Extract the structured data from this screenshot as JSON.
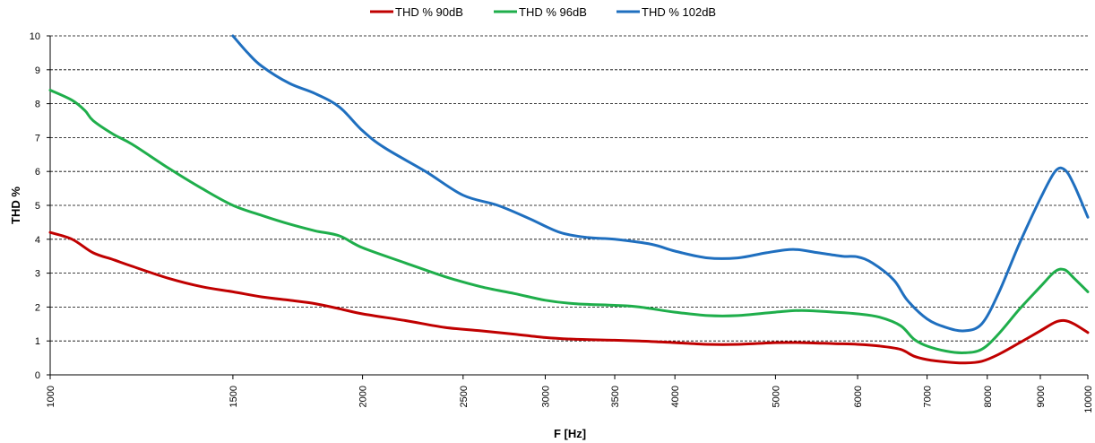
{
  "chart_data": {
    "type": "line",
    "xlabel": "F [Hz]",
    "ylabel": "THD %",
    "x_scale": "log",
    "xlim": [
      1000,
      10000
    ],
    "ylim": [
      0,
      10
    ],
    "x_ticks": [
      1000,
      1500,
      2000,
      2500,
      3000,
      3500,
      4000,
      5000,
      6000,
      7000,
      8000,
      9000,
      10000
    ],
    "y_ticks": [
      0,
      1,
      2,
      3,
      4,
      5,
      6,
      7,
      8,
      9,
      10
    ],
    "grid": "horizontal dashed",
    "legend_position": "top",
    "series": [
      {
        "name": "THD % 90dB",
        "color": "#c00000",
        "points": [
          [
            1000,
            4.2
          ],
          [
            1050,
            4.0
          ],
          [
            1100,
            3.6
          ],
          [
            1150,
            3.4
          ],
          [
            1200,
            3.2
          ],
          [
            1300,
            2.85
          ],
          [
            1400,
            2.6
          ],
          [
            1500,
            2.45
          ],
          [
            1600,
            2.3
          ],
          [
            1700,
            2.2
          ],
          [
            1800,
            2.1
          ],
          [
            1900,
            1.95
          ],
          [
            2000,
            1.8
          ],
          [
            2200,
            1.6
          ],
          [
            2400,
            1.4
          ],
          [
            2600,
            1.3
          ],
          [
            2800,
            1.2
          ],
          [
            3000,
            1.1
          ],
          [
            3200,
            1.05
          ],
          [
            3500,
            1.02
          ],
          [
            3700,
            1.0
          ],
          [
            4000,
            0.95
          ],
          [
            4300,
            0.9
          ],
          [
            4600,
            0.9
          ],
          [
            5000,
            0.95
          ],
          [
            5300,
            0.95
          ],
          [
            5700,
            0.92
          ],
          [
            6000,
            0.9
          ],
          [
            6300,
            0.85
          ],
          [
            6600,
            0.75
          ],
          [
            6800,
            0.55
          ],
          [
            7000,
            0.45
          ],
          [
            7300,
            0.38
          ],
          [
            7600,
            0.35
          ],
          [
            7900,
            0.4
          ],
          [
            8200,
            0.6
          ],
          [
            8600,
            0.95
          ],
          [
            9000,
            1.3
          ],
          [
            9300,
            1.55
          ],
          [
            9500,
            1.6
          ],
          [
            9700,
            1.5
          ],
          [
            10000,
            1.25
          ]
        ]
      },
      {
        "name": "THD % 96dB",
        "color": "#1fae4b",
        "points": [
          [
            1000,
            8.4
          ],
          [
            1050,
            8.1
          ],
          [
            1080,
            7.8
          ],
          [
            1100,
            7.5
          ],
          [
            1150,
            7.1
          ],
          [
            1200,
            6.8
          ],
          [
            1300,
            6.1
          ],
          [
            1400,
            5.5
          ],
          [
            1500,
            5.0
          ],
          [
            1600,
            4.7
          ],
          [
            1700,
            4.45
          ],
          [
            1800,
            4.25
          ],
          [
            1900,
            4.1
          ],
          [
            2000,
            3.75
          ],
          [
            2200,
            3.3
          ],
          [
            2400,
            2.9
          ],
          [
            2600,
            2.6
          ],
          [
            2800,
            2.4
          ],
          [
            3000,
            2.2
          ],
          [
            3200,
            2.1
          ],
          [
            3500,
            2.05
          ],
          [
            3700,
            2.0
          ],
          [
            4000,
            1.85
          ],
          [
            4300,
            1.75
          ],
          [
            4600,
            1.75
          ],
          [
            5000,
            1.85
          ],
          [
            5300,
            1.9
          ],
          [
            5700,
            1.85
          ],
          [
            6000,
            1.8
          ],
          [
            6300,
            1.7
          ],
          [
            6600,
            1.45
          ],
          [
            6800,
            1.05
          ],
          [
            7000,
            0.85
          ],
          [
            7300,
            0.7
          ],
          [
            7600,
            0.65
          ],
          [
            7900,
            0.75
          ],
          [
            8200,
            1.2
          ],
          [
            8600,
            1.95
          ],
          [
            9000,
            2.6
          ],
          [
            9300,
            3.05
          ],
          [
            9500,
            3.1
          ],
          [
            9700,
            2.85
          ],
          [
            10000,
            2.45
          ]
        ]
      },
      {
        "name": "THD % 102dB",
        "color": "#1f6fbf",
        "points": [
          [
            1500,
            10.0
          ],
          [
            1550,
            9.5
          ],
          [
            1600,
            9.1
          ],
          [
            1700,
            8.6
          ],
          [
            1800,
            8.3
          ],
          [
            1900,
            7.9
          ],
          [
            2000,
            7.2
          ],
          [
            2100,
            6.7
          ],
          [
            2300,
            6.0
          ],
          [
            2500,
            5.3
          ],
          [
            2700,
            5.0
          ],
          [
            2900,
            4.6
          ],
          [
            3100,
            4.2
          ],
          [
            3300,
            4.05
          ],
          [
            3500,
            4.0
          ],
          [
            3800,
            3.85
          ],
          [
            4000,
            3.65
          ],
          [
            4300,
            3.45
          ],
          [
            4600,
            3.45
          ],
          [
            4900,
            3.6
          ],
          [
            5200,
            3.7
          ],
          [
            5500,
            3.6
          ],
          [
            5800,
            3.5
          ],
          [
            6000,
            3.48
          ],
          [
            6200,
            3.3
          ],
          [
            6500,
            2.8
          ],
          [
            6700,
            2.2
          ],
          [
            7000,
            1.65
          ],
          [
            7300,
            1.4
          ],
          [
            7600,
            1.3
          ],
          [
            7900,
            1.5
          ],
          [
            8200,
            2.4
          ],
          [
            8600,
            3.9
          ],
          [
            9000,
            5.2
          ],
          [
            9300,
            6.0
          ],
          [
            9500,
            6.05
          ],
          [
            9700,
            5.6
          ],
          [
            10000,
            4.65
          ]
        ]
      }
    ]
  }
}
